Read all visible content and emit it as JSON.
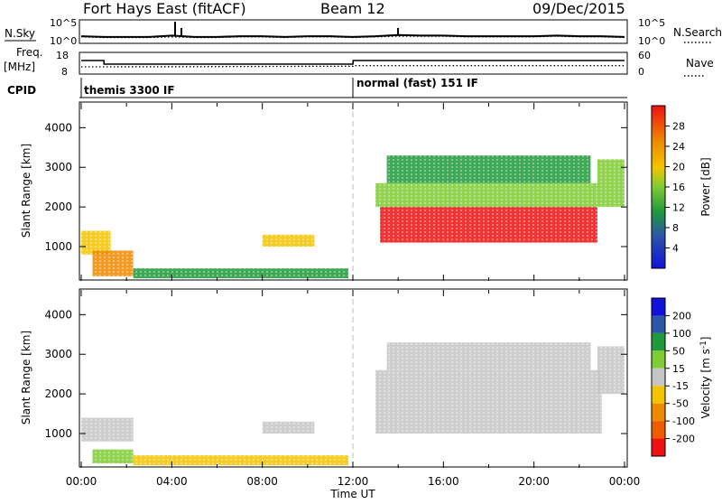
{
  "header": {
    "station": "Fort Hays East (fitACF)",
    "beam": "Beam 12",
    "date": "09/Dec/2015"
  },
  "colors": {
    "red": "#ee1111",
    "orange": "#f08a00",
    "yellow": "#f4c400",
    "lightgreen": "#7fcc33",
    "green": "#1f9a3a",
    "blue": "#1111dd",
    "grey": "#c6c6c6"
  },
  "chart_data": [
    {
      "type": "line",
      "panel": "noise",
      "labels": {
        "left": "N.Sky",
        "right": "N.Search"
      },
      "left_ticks": [
        "10^5",
        "10^0"
      ],
      "right_ticks": [
        "10^5",
        "10^0"
      ],
      "x": [
        0,
        1,
        2,
        3,
        4,
        5,
        6,
        7,
        8,
        9,
        10,
        11,
        12,
        13,
        14,
        15,
        16,
        17,
        18,
        19,
        20,
        21,
        22,
        23,
        24
      ],
      "series": [
        {
          "name": "N.Sky",
          "values": [
            8,
            7,
            7,
            7,
            9,
            7,
            7,
            8,
            8,
            7,
            8,
            8,
            7,
            8,
            10,
            9,
            9,
            8,
            8,
            8,
            8,
            9,
            8,
            8,
            7
          ]
        },
        {
          "name": "N.Search",
          "values": [
            7,
            6,
            6,
            6,
            7,
            6,
            6,
            7,
            7,
            6,
            7,
            7,
            6,
            7,
            8,
            8,
            8,
            7,
            7,
            7,
            7,
            8,
            7,
            7,
            6
          ]
        }
      ]
    },
    {
      "type": "line",
      "panel": "frequency",
      "labels": {
        "left": "Freq.",
        "left_unit": "[MHz]",
        "right": "Nave"
      },
      "left_ticks": [
        "18",
        "8"
      ],
      "right_ticks": [
        "60",
        "0"
      ],
      "x": [
        0,
        1,
        1.01,
        12,
        12.01,
        24
      ],
      "series": [
        {
          "name": "Freq.",
          "values": [
            14.5,
            14.5,
            12.5,
            12.5,
            14.5,
            14.5
          ]
        },
        {
          "name": "Nave",
          "values": [
            18,
            18,
            18,
            20,
            22,
            22
          ]
        }
      ]
    },
    {
      "type": "annotation",
      "panel": "cpid",
      "label": "CPID",
      "entries": [
        {
          "start": 0,
          "text": "themis 3300 IF"
        },
        {
          "start": 12,
          "text": "normal (fast) 151 IF"
        }
      ]
    },
    {
      "type": "heatmap",
      "panel": "power",
      "ylabel": "Slant Range [km]",
      "yticks": [
        "1000",
        "2000",
        "3000",
        "4000"
      ],
      "ylim": [
        180,
        4600
      ],
      "xlim": [
        0,
        24
      ],
      "colorbar": {
        "label": "Power [dB]",
        "ticks": [
          "4",
          "8",
          "12",
          "16",
          "20",
          "24",
          "28"
        ]
      },
      "regions": [
        {
          "x": [
            0,
            1.3
          ],
          "y": [
            800,
            1400
          ],
          "value": 18
        },
        {
          "x": [
            0.5,
            2.3
          ],
          "y": [
            250,
            900
          ],
          "value": 22
        },
        {
          "x": [
            2.3,
            11.8
          ],
          "y": [
            200,
            450
          ],
          "value": 8
        },
        {
          "x": [
            8,
            10.3
          ],
          "y": [
            1000,
            1300
          ],
          "value": 16
        },
        {
          "x": [
            13.2,
            22.8
          ],
          "y": [
            1100,
            2000
          ],
          "value": 26
        },
        {
          "x": [
            13,
            22.8
          ],
          "y": [
            2000,
            2600
          ],
          "value": 12
        },
        {
          "x": [
            13.5,
            22.5
          ],
          "y": [
            2600,
            3300
          ],
          "value": 10
        },
        {
          "x": [
            22.8,
            24
          ],
          "y": [
            2000,
            3200
          ],
          "value": 14
        }
      ]
    },
    {
      "type": "heatmap",
      "panel": "velocity",
      "ylabel": "Slant Range [km]",
      "xlabel": "Time UT",
      "xticks": [
        "00:00",
        "04:00",
        "08:00",
        "12:00",
        "16:00",
        "20:00",
        "00:00"
      ],
      "yticks": [
        "1000",
        "2000",
        "3000",
        "4000"
      ],
      "ylim": [
        180,
        4600
      ],
      "xlim": [
        0,
        24
      ],
      "colorbar": {
        "label": "Velocity [m s^-1]",
        "ticks": [
          "200",
          "100",
          "50",
          "15",
          "-15",
          "-50",
          "-100",
          "-200"
        ]
      },
      "regions": [
        {
          "x": [
            0,
            2.3
          ],
          "y": [
            800,
            1400
          ],
          "value": 0
        },
        {
          "x": [
            0.5,
            2.3
          ],
          "y": [
            250,
            600
          ],
          "value": 40
        },
        {
          "x": [
            2.3,
            11.8
          ],
          "y": [
            200,
            450
          ],
          "value": -40
        },
        {
          "x": [
            8,
            10.3
          ],
          "y": [
            1000,
            1300
          ],
          "value": 0
        },
        {
          "x": [
            13,
            23
          ],
          "y": [
            1000,
            2600
          ],
          "value": 0
        },
        {
          "x": [
            13.5,
            22.5
          ],
          "y": [
            2600,
            3300
          ],
          "value": 0
        },
        {
          "x": [
            22.8,
            24
          ],
          "y": [
            2000,
            3200
          ],
          "value": 0
        }
      ]
    }
  ]
}
